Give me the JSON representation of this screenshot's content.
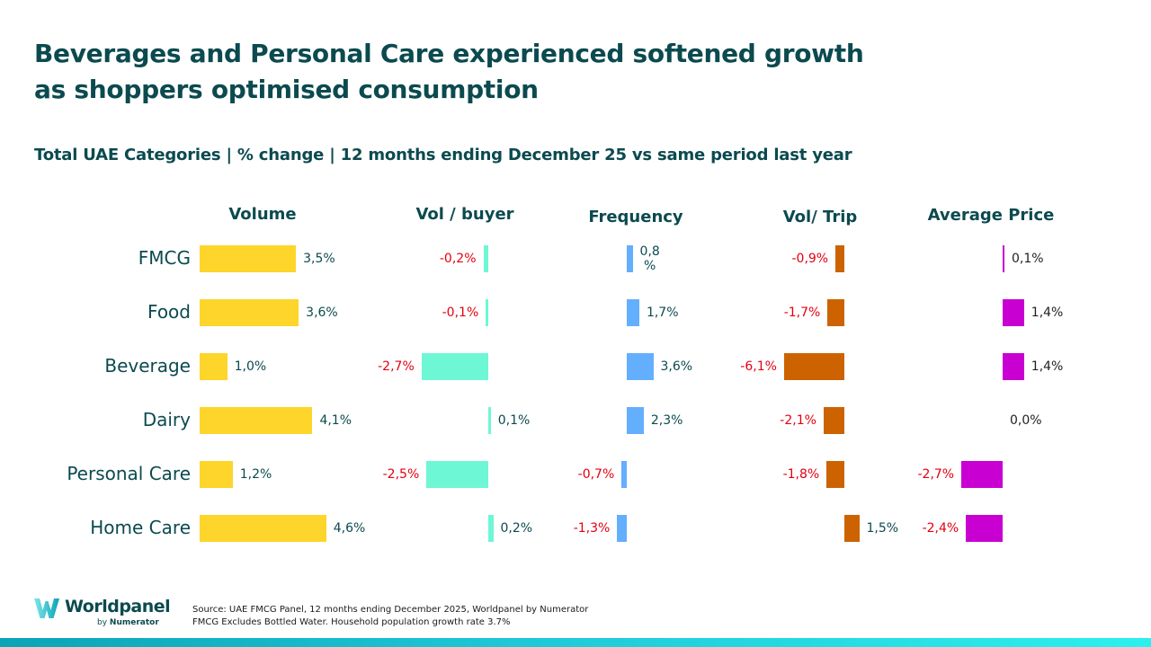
{
  "title": {
    "line1": "Beverages and Personal Care experienced softened growth",
    "line2": "as shoppers  optimised consumption"
  },
  "subtitle": "Total UAE Categories | % change | 12 months ending December 25 vs same period last year",
  "footer": {
    "source_line1": "Source: UAE FMCG Panel, 12 months ending December 2025, Worldpanel by Numerator",
    "source_line2": "FMCG Excludes Bottled Water. Household population growth rate 3.7%",
    "logo_name": "Worldpanel",
    "logo_by": "by",
    "logo_brand": "Numerator"
  },
  "colors": {
    "title": "#0b4a4f",
    "negative_label": "#e3000f",
    "volume": "#fdd52b",
    "vol_buyer": "#6ef7d5",
    "frequency": "#64aefe",
    "vol_trip": "#cc6300",
    "avg_price": "#c800d2"
  },
  "chart_data": {
    "type": "bar",
    "orientation": "horizontal",
    "title": "Total UAE Categories | % change | 12 months ending December 25 vs same period last year",
    "categories": [
      "FMCG",
      "Food",
      "Beverage",
      "Dairy",
      "Personal Care",
      "Home Care"
    ],
    "unit": "%",
    "decimal_separator": ",",
    "series": [
      {
        "name": "Volume",
        "values": [
          3.5,
          3.6,
          1.0,
          4.1,
          1.2,
          4.6
        ],
        "labels": [
          "3,5%",
          "3,6%",
          "1,0%",
          "4,1%",
          "1,2%",
          "4,6%"
        ]
      },
      {
        "name": "Vol / buyer",
        "values": [
          -0.2,
          -0.1,
          -2.7,
          0.1,
          -2.5,
          0.2
        ],
        "labels": [
          "-0,2%",
          "-0,1%",
          "-2,7%",
          "0,1%",
          "-2,5%",
          "0,2%"
        ]
      },
      {
        "name": "Frequency",
        "values": [
          0.8,
          1.7,
          3.6,
          2.3,
          -0.7,
          -1.3
        ],
        "labels": [
          "0,8\n%",
          "1,7%",
          "3,6%",
          "2,3%",
          "-0,7%",
          "-1,3%"
        ]
      },
      {
        "name": "Vol/ Trip",
        "values": [
          -0.9,
          -1.7,
          -6.1,
          -2.1,
          -1.8,
          1.5
        ],
        "labels": [
          "-0,9%",
          "-1,7%",
          "-6,1%",
          "-2,1%",
          "-1,8%",
          "1,5%"
        ]
      },
      {
        "name": "Average Price",
        "values": [
          0.1,
          1.4,
          1.4,
          0.0,
          -2.7,
          -2.4
        ],
        "labels": [
          "0,1%",
          "1,4%",
          "1,4%",
          "0,0%",
          "-2,7%",
          "-2,4%"
        ]
      }
    ],
    "legend": "none",
    "grid": false
  }
}
